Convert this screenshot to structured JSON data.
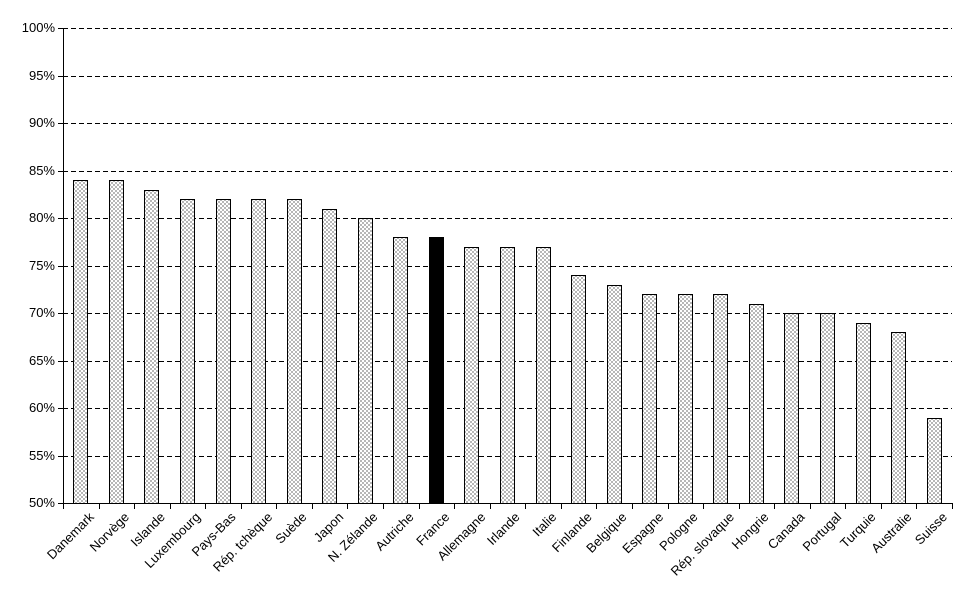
{
  "chart_data": {
    "type": "bar",
    "title": "",
    "xlabel": "",
    "ylabel": "",
    "categories": [
      "Danemark",
      "Norvège",
      "Islande",
      "Luxembourg",
      "Pays-Bas",
      "Rép. tchèque",
      "Suède",
      "Japon",
      "N. Zélande",
      "Autriche",
      "France",
      "Allemagne",
      "Irlande",
      "Italie",
      "Finlande",
      "Belgique",
      "Espagne",
      "Pologne",
      "Rép. slovaque",
      "Hongrie",
      "Canada",
      "Portugal",
      "Turquie",
      "Australie",
      "Suisse"
    ],
    "values": [
      84,
      84,
      83,
      82,
      82,
      82,
      82,
      81,
      80,
      78,
      78,
      77,
      77,
      77,
      74,
      73,
      72,
      72,
      72,
      71,
      70,
      70,
      69,
      68,
      59
    ],
    "value_unit": "%",
    "highlight": {
      "category": "France",
      "index": 10,
      "color": "#000000"
    },
    "bar_style": {
      "fill": "dotted-stipple",
      "outline_color": "#000000",
      "fill_background": "#ffffff"
    },
    "ylim": [
      50,
      100
    ],
    "ytick_step": 5,
    "yticks": [
      {
        "value": 100,
        "label": "100%"
      },
      {
        "value": 95,
        "label": "95%"
      },
      {
        "value": 90,
        "label": "90%"
      },
      {
        "value": 85,
        "label": "85%"
      },
      {
        "value": 80,
        "label": "80%"
      },
      {
        "value": 75,
        "label": "75%"
      },
      {
        "value": 70,
        "label": "70%"
      },
      {
        "value": 65,
        "label": "65%"
      },
      {
        "value": 60,
        "label": "60%"
      },
      {
        "value": 55,
        "label": "55%"
      },
      {
        "value": 50,
        "label": "50%"
      }
    ],
    "grid": {
      "horizontal": true,
      "style": "dashed",
      "color": "#000000"
    },
    "legend_position": "none",
    "x_label_rotation_deg": -45
  }
}
